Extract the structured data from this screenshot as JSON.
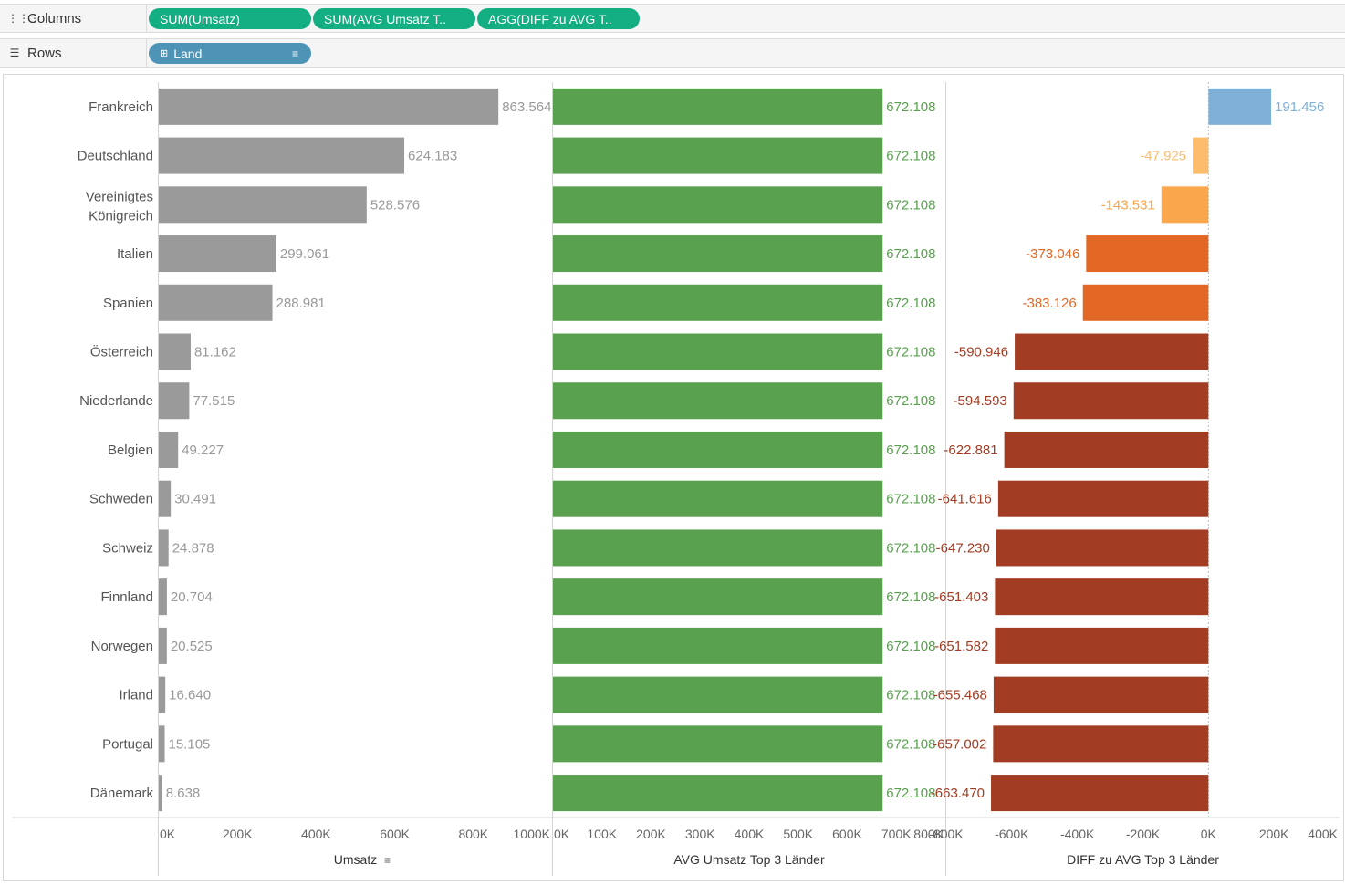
{
  "shelves": {
    "columns": {
      "label": "Columns",
      "pills": [
        "SUM(Umsatz)",
        "SUM(AVG Umsatz T..",
        "AGG(DIFF zu AVG T.."
      ]
    },
    "rows": {
      "label": "Rows",
      "pills": [
        "Land"
      ]
    }
  },
  "colors": {
    "umsatz": "#9a9a9a",
    "avg": "#59a14f",
    "diff_positive": "#7fb1d8",
    "diff_scale": [
      "#fdbb6c",
      "#f9a64c",
      "#e36724",
      "#a23c22"
    ]
  },
  "chart_data": [
    {
      "type": "bar",
      "orientation": "horizontal",
      "xlabel": "Umsatz",
      "sorted": true,
      "categories": [
        "Frankreich",
        "Deutschland",
        "Vereinigtes Königreich",
        "Italien",
        "Spanien",
        "Österreich",
        "Niederlande",
        "Belgien",
        "Schweden",
        "Schweiz",
        "Finnland",
        "Norwegen",
        "Irland",
        "Portugal",
        "Dänemark"
      ],
      "values": [
        863564,
        624183,
        528576,
        299061,
        288981,
        81162,
        77515,
        49227,
        30491,
        24878,
        20704,
        20525,
        16640,
        15105,
        8638
      ],
      "labels": [
        "863.564",
        "624.183",
        "528.576",
        "299.061",
        "288.981",
        "81.162",
        "77.515",
        "49.227",
        "30.491",
        "24.878",
        "20.704",
        "20.525",
        "16.640",
        "15.105",
        "8.638"
      ],
      "xlim": [
        0,
        1000000
      ],
      "ticks": [
        "0K",
        "200K",
        "400K",
        "600K",
        "800K",
        "1000K"
      ],
      "tick_values": [
        0,
        200000,
        400000,
        600000,
        800000,
        1000000
      ]
    },
    {
      "type": "bar",
      "orientation": "horizontal",
      "xlabel": "AVG Umsatz Top 3 Länder",
      "values": [
        672108,
        672108,
        672108,
        672108,
        672108,
        672108,
        672108,
        672108,
        672108,
        672108,
        672108,
        672108,
        672108,
        672108,
        672108
      ],
      "labels": [
        "672.108",
        "672.108",
        "672.108",
        "672.108",
        "672.108",
        "672.108",
        "672.108",
        "672.108",
        "672.108",
        "672.108",
        "672.108",
        "672.108",
        "672.108",
        "672.108",
        "672.108"
      ],
      "xlim": [
        0,
        800000
      ],
      "ticks": [
        "0K",
        "100K",
        "200K",
        "300K",
        "400K",
        "500K",
        "600K",
        "700K",
        "800K"
      ],
      "tick_values": [
        0,
        100000,
        200000,
        300000,
        400000,
        500000,
        600000,
        700000,
        800000
      ]
    },
    {
      "type": "bar",
      "orientation": "horizontal",
      "xlabel": "DIFF zu AVG Top 3 Länder",
      "values": [
        191456,
        -47925,
        -143531,
        -373046,
        -383126,
        -590946,
        -594593,
        -622881,
        -641616,
        -647230,
        -651403,
        -651582,
        -655468,
        -657002,
        -663470
      ],
      "labels": [
        "191.456",
        "-47.925",
        "-143.531",
        "-373.046",
        "-383.126",
        "-590.946",
        "-594.593",
        "-622.881",
        "-641.616",
        "-647.230",
        "-651.403",
        "-651.582",
        "-655.468",
        "-657.002",
        "-663.470"
      ],
      "xlim": [
        -800000,
        400000
      ],
      "ticks": [
        "-800K",
        "-600K",
        "-400K",
        "-200K",
        "0K",
        "200K",
        "400K"
      ],
      "tick_values": [
        -800000,
        -600000,
        -400000,
        -200000,
        0,
        200000,
        400000
      ]
    }
  ]
}
